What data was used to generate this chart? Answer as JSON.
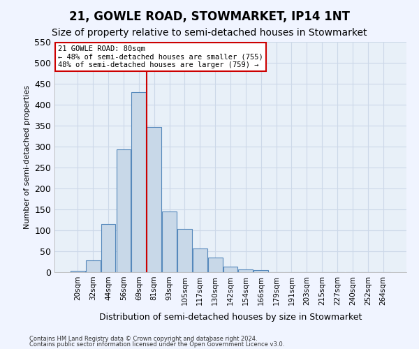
{
  "title": "21, GOWLE ROAD, STOWMARKET, IP14 1NT",
  "subtitle": "Size of property relative to semi-detached houses in Stowmarket",
  "xlabel": "Distribution of semi-detached houses by size in Stowmarket",
  "ylabel": "Number of semi-detached properties",
  "footnote1": "Contains HM Land Registry data © Crown copyright and database right 2024.",
  "footnote2": "Contains public sector information licensed under the Open Government Licence v3.0.",
  "bar_labels": [
    "20sqm",
    "32sqm",
    "44sqm",
    "56sqm",
    "69sqm",
    "81sqm",
    "93sqm",
    "105sqm",
    "117sqm",
    "130sqm",
    "142sqm",
    "154sqm",
    "166sqm",
    "179sqm",
    "191sqm",
    "203sqm",
    "215sqm",
    "227sqm",
    "240sqm",
    "252sqm",
    "264sqm"
  ],
  "bar_values": [
    3,
    28,
    115,
    293,
    430,
    347,
    145,
    103,
    57,
    35,
    13,
    7,
    5,
    0,
    0,
    0,
    0,
    0,
    0,
    0,
    0
  ],
  "bar_color": "#c8d8e8",
  "bar_edgecolor": "#5588bb",
  "vline_index": 5,
  "vline_color": "#cc0000",
  "annotation_title": "21 GOWLE ROAD: 80sqm",
  "annotation_line1": "← 48% of semi-detached houses are smaller (755)",
  "annotation_line2": "48% of semi-detached houses are larger (759) →",
  "annotation_box_color": "#ffffff",
  "annotation_box_edgecolor": "#cc0000",
  "ylim": [
    0,
    550
  ],
  "yticks": [
    0,
    50,
    100,
    150,
    200,
    250,
    300,
    350,
    400,
    450,
    500,
    550
  ],
  "grid_color": "#ccd8e8",
  "background_color": "#e8f0f8",
  "figure_color": "#f0f4ff",
  "title_fontsize": 12,
  "subtitle_fontsize": 10
}
